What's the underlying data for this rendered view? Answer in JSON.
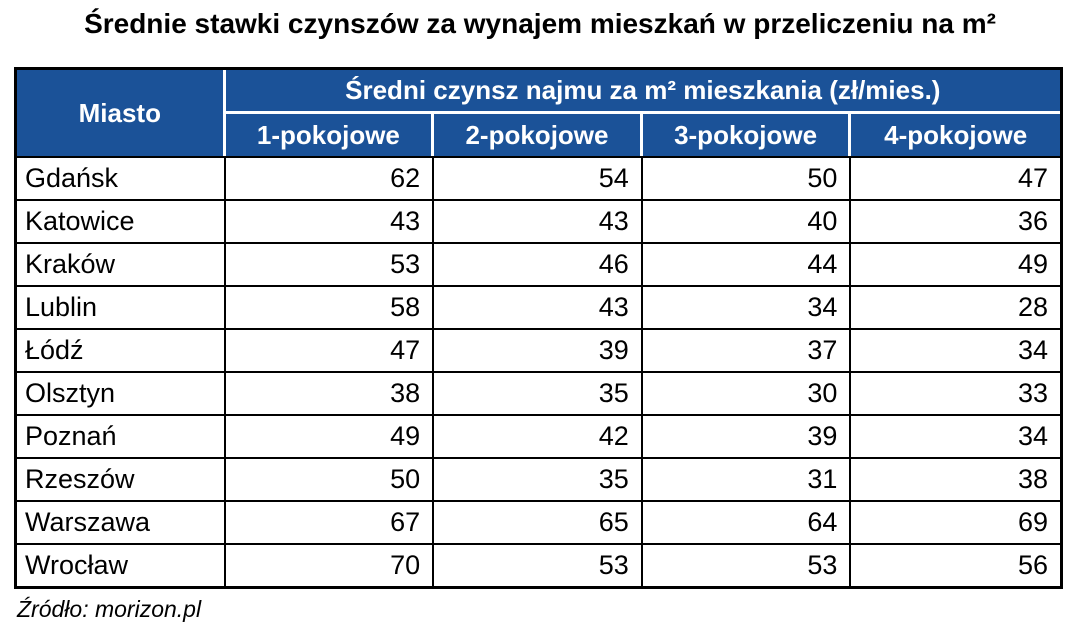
{
  "page": {
    "title": "Średnie stawki czynszów za wynajem mieszkań w przeliczeniu na m²",
    "source": "Źródło: morizon.pl"
  },
  "table": {
    "corner_header": "Miasto",
    "group_header": "Średni czynsz najmu za m² mieszkania (zł/mies.)",
    "sub_headers": [
      "1-pokojowe",
      "2-pokojowe",
      "3-pokojowe",
      "4-pokojowe"
    ]
  },
  "colors": {
    "header_bg": "#1B5298",
    "header_text": "#FFFFFF",
    "header_separator": "#FFFFFF",
    "border": "#000000",
    "text": "#000000",
    "background": "#FFFFFF"
  },
  "chart_data": {
    "type": "table",
    "title": "Średnie stawki czynszów za wynajem mieszkań w przeliczeniu na m²",
    "group_header": "Średni czynsz najmu za m² mieszkania (zł/mies.)",
    "columns": [
      "Miasto",
      "1-pokojowe",
      "2-pokojowe",
      "3-pokojowe",
      "4-pokojowe"
    ],
    "rows": [
      {
        "city": "Gdańsk",
        "values": [
          62,
          54,
          50,
          47
        ]
      },
      {
        "city": "Katowice",
        "values": [
          43,
          43,
          40,
          36
        ]
      },
      {
        "city": "Kraków",
        "values": [
          53,
          46,
          44,
          49
        ]
      },
      {
        "city": "Lublin",
        "values": [
          58,
          43,
          34,
          28
        ]
      },
      {
        "city": "Łódź",
        "values": [
          47,
          39,
          37,
          34
        ]
      },
      {
        "city": "Olsztyn",
        "values": [
          38,
          35,
          30,
          33
        ]
      },
      {
        "city": "Poznań",
        "values": [
          49,
          42,
          39,
          34
        ]
      },
      {
        "city": "Rzeszów",
        "values": [
          50,
          35,
          31,
          38
        ]
      },
      {
        "city": "Warszawa",
        "values": [
          67,
          65,
          64,
          69
        ]
      },
      {
        "city": "Wrocław",
        "values": [
          70,
          53,
          53,
          56
        ]
      }
    ],
    "source": "Źródło: morizon.pl"
  }
}
